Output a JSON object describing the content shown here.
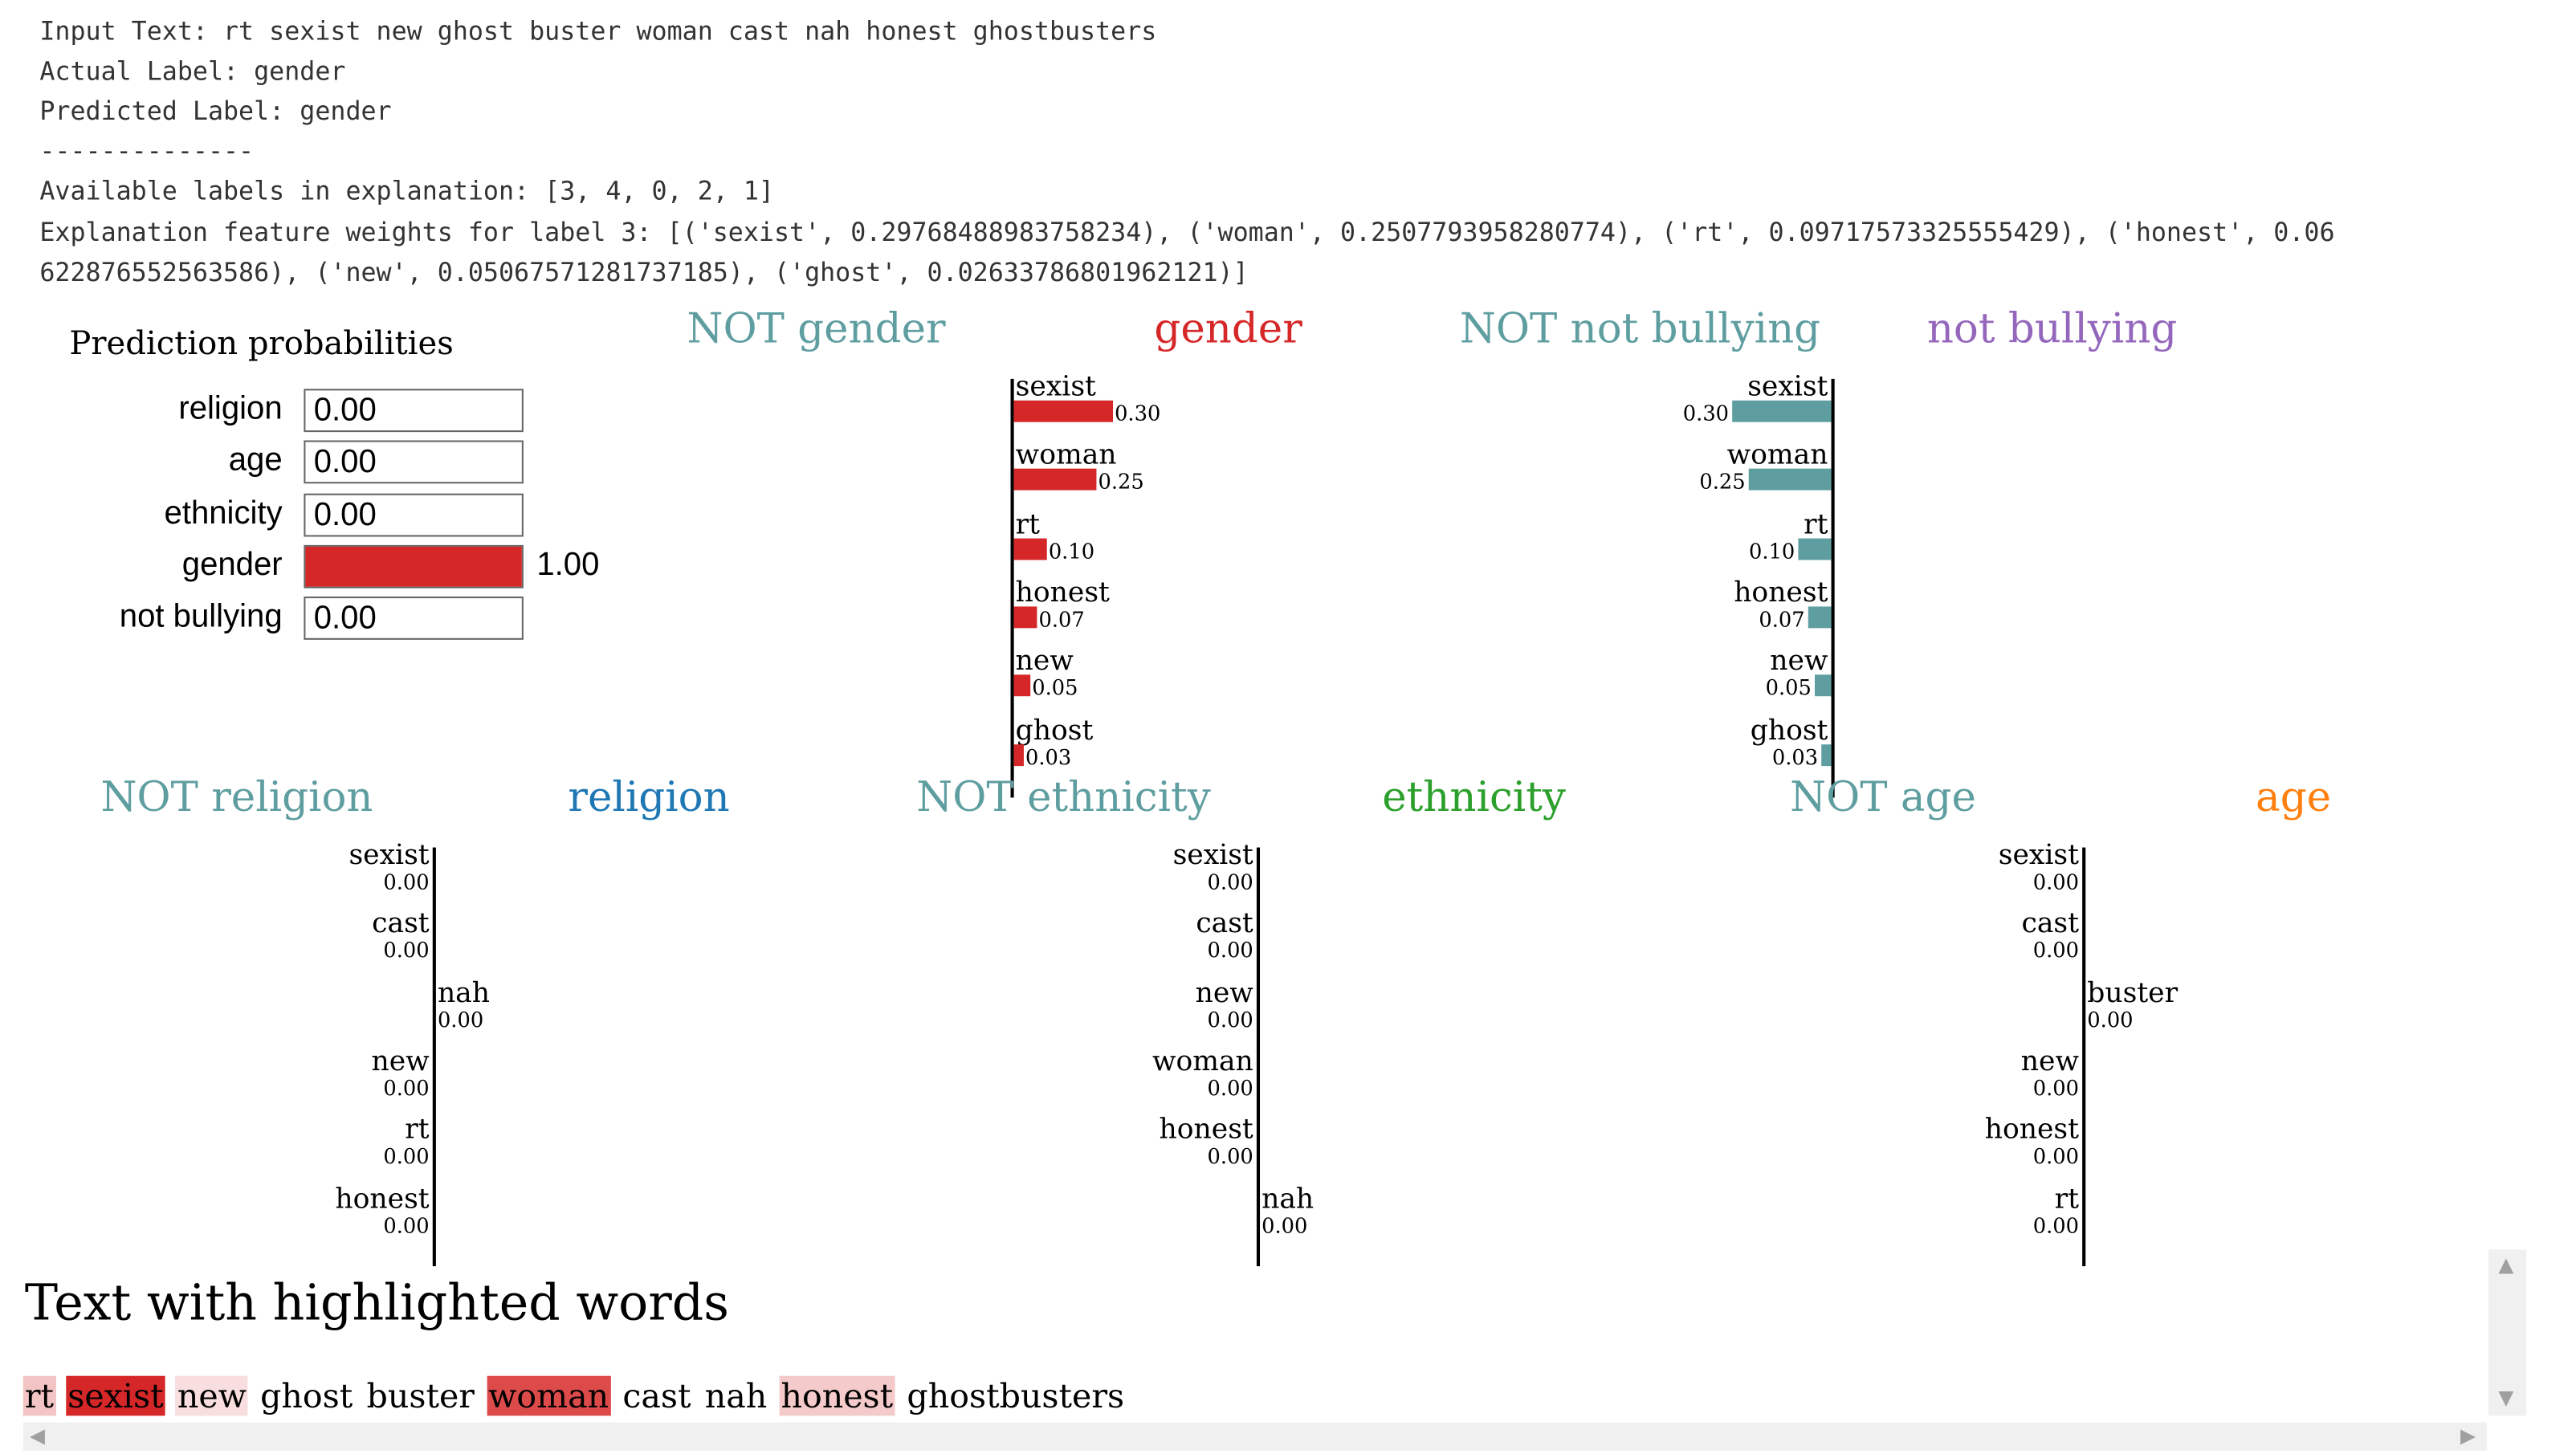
{
  "info": {
    "input_text": "Input Text: rt sexist new ghost buster woman cast nah honest ghostbusters",
    "actual_label": "Actual Label: gender",
    "predicted_label": "Predicted Label: gender",
    "separator": "--------------",
    "available_labels": "Available labels in explanation: [3, 4, 0, 2, 1]",
    "weights_line1": "Explanation feature weights for label 3: [('sexist', 0.29768488983758234), ('woman', 0.2507793958280774), ('rt', 0.09717573325555429), ('honest', 0.06",
    "weights_line2": "622876552563586), ('new', 0.05067571281737185), ('ghost', 0.02633786801962121)]"
  },
  "prediction_probabilities": {
    "title": "Prediction probabilities",
    "rows": [
      {
        "label": "religion",
        "value": "0.00",
        "fraction": 0.0,
        "color": "#d62728",
        "outside": false
      },
      {
        "label": "age",
        "value": "0.00",
        "fraction": 0.0,
        "color": "#d62728",
        "outside": false
      },
      {
        "label": "ethnicity",
        "value": "0.00",
        "fraction": 0.0,
        "color": "#d62728",
        "outside": false
      },
      {
        "label": "gender",
        "value": "1.00",
        "fraction": 1.0,
        "color": "#d62728",
        "outside": true
      },
      {
        "label": "not bullying",
        "value": "0.00",
        "fraction": 0.0,
        "color": "#d62728",
        "outside": false
      }
    ]
  },
  "chart_data": [
    {
      "type": "bar",
      "class_titles": {
        "negative": "NOT gender",
        "positive": "gender"
      },
      "title_colors": {
        "negative": "#5f9ea0",
        "positive": "#d62728"
      },
      "side": "positive",
      "bar_color": "#d62728",
      "features": [
        {
          "word": "sexist",
          "label": "0.30",
          "weight": 0.3
        },
        {
          "word": "woman",
          "label": "0.25",
          "weight": 0.25
        },
        {
          "word": "rt",
          "label": "0.10",
          "weight": 0.1
        },
        {
          "word": "honest",
          "label": "0.07",
          "weight": 0.07
        },
        {
          "word": "new",
          "label": "0.05",
          "weight": 0.05
        },
        {
          "word": "ghost",
          "label": "0.03",
          "weight": 0.03
        }
      ]
    },
    {
      "type": "bar",
      "class_titles": {
        "negative": "NOT not bullying",
        "positive": "not bullying"
      },
      "title_colors": {
        "negative": "#5f9ea0",
        "positive": "#9467bd"
      },
      "side": "negative",
      "bar_color": "#5f9ea0",
      "features": [
        {
          "word": "sexist",
          "label": "0.30",
          "weight": 0.3
        },
        {
          "word": "woman",
          "label": "0.25",
          "weight": 0.25
        },
        {
          "word": "rt",
          "label": "0.10",
          "weight": 0.1
        },
        {
          "word": "honest",
          "label": "0.07",
          "weight": 0.07
        },
        {
          "word": "new",
          "label": "0.05",
          "weight": 0.05
        },
        {
          "word": "ghost",
          "label": "0.03",
          "weight": 0.03
        }
      ]
    },
    {
      "type": "bar",
      "class_titles": {
        "negative": "NOT religion",
        "positive": "religion"
      },
      "title_colors": {
        "negative": "#5f9ea0",
        "positive": "#1f77b4"
      },
      "side": "mixed",
      "bar_color": "#1f77b4",
      "features": [
        {
          "word": "sexist",
          "label": "0.00",
          "weight": 0.0,
          "side": "negative"
        },
        {
          "word": "cast",
          "label": "0.00",
          "weight": 0.0,
          "side": "negative"
        },
        {
          "word": "nah",
          "label": "0.00",
          "weight": 0.0,
          "side": "positive"
        },
        {
          "word": "new",
          "label": "0.00",
          "weight": 0.0,
          "side": "negative"
        },
        {
          "word": "rt",
          "label": "0.00",
          "weight": 0.0,
          "side": "negative"
        },
        {
          "word": "honest",
          "label": "0.00",
          "weight": 0.0,
          "side": "negative"
        }
      ]
    },
    {
      "type": "bar",
      "class_titles": {
        "negative": "NOT ethnicity",
        "positive": "ethnicity"
      },
      "title_colors": {
        "negative": "#5f9ea0",
        "positive": "#2ca02c"
      },
      "side": "mixed",
      "bar_color": "#2ca02c",
      "features": [
        {
          "word": "sexist",
          "label": "0.00",
          "weight": 0.0,
          "side": "negative"
        },
        {
          "word": "cast",
          "label": "0.00",
          "weight": 0.0,
          "side": "negative"
        },
        {
          "word": "new",
          "label": "0.00",
          "weight": 0.0,
          "side": "negative"
        },
        {
          "word": "woman",
          "label": "0.00",
          "weight": 0.0,
          "side": "negative"
        },
        {
          "word": "honest",
          "label": "0.00",
          "weight": 0.0,
          "side": "negative"
        },
        {
          "word": "nah",
          "label": "0.00",
          "weight": 0.0,
          "side": "positive"
        }
      ]
    },
    {
      "type": "bar",
      "class_titles": {
        "negative": "NOT age",
        "positive": "age"
      },
      "title_colors": {
        "negative": "#5f9ea0",
        "positive": "#ff7f0e"
      },
      "side": "mixed",
      "bar_color": "#ff7f0e",
      "features": [
        {
          "word": "sexist",
          "label": "0.00",
          "weight": 0.0,
          "side": "negative"
        },
        {
          "word": "cast",
          "label": "0.00",
          "weight": 0.0,
          "side": "negative"
        },
        {
          "word": "buster",
          "label": "0.00",
          "weight": 0.0,
          "side": "positive"
        },
        {
          "word": "new",
          "label": "0.00",
          "weight": 0.0,
          "side": "negative"
        },
        {
          "word": "honest",
          "label": "0.00",
          "weight": 0.0,
          "side": "negative"
        },
        {
          "word": "rt",
          "label": "0.00",
          "weight": 0.0,
          "side": "negative"
        }
      ]
    }
  ],
  "highlight": {
    "title": "Text with highlighted words",
    "words": [
      {
        "text": "rt",
        "color": "#f2c4c4"
      },
      {
        "text": "sexist",
        "color": "#d62728",
        "text_color": "#000000"
      },
      {
        "text": "new",
        "color": "#f8dede"
      },
      {
        "text": "ghost",
        "color": ""
      },
      {
        "text": "buster",
        "color": ""
      },
      {
        "text": "woman",
        "color": "#dd4a4a"
      },
      {
        "text": "cast",
        "color": ""
      },
      {
        "text": "nah",
        "color": ""
      },
      {
        "text": "honest",
        "color": "#f4caca"
      },
      {
        "text": "ghostbusters",
        "color": ""
      }
    ]
  }
}
